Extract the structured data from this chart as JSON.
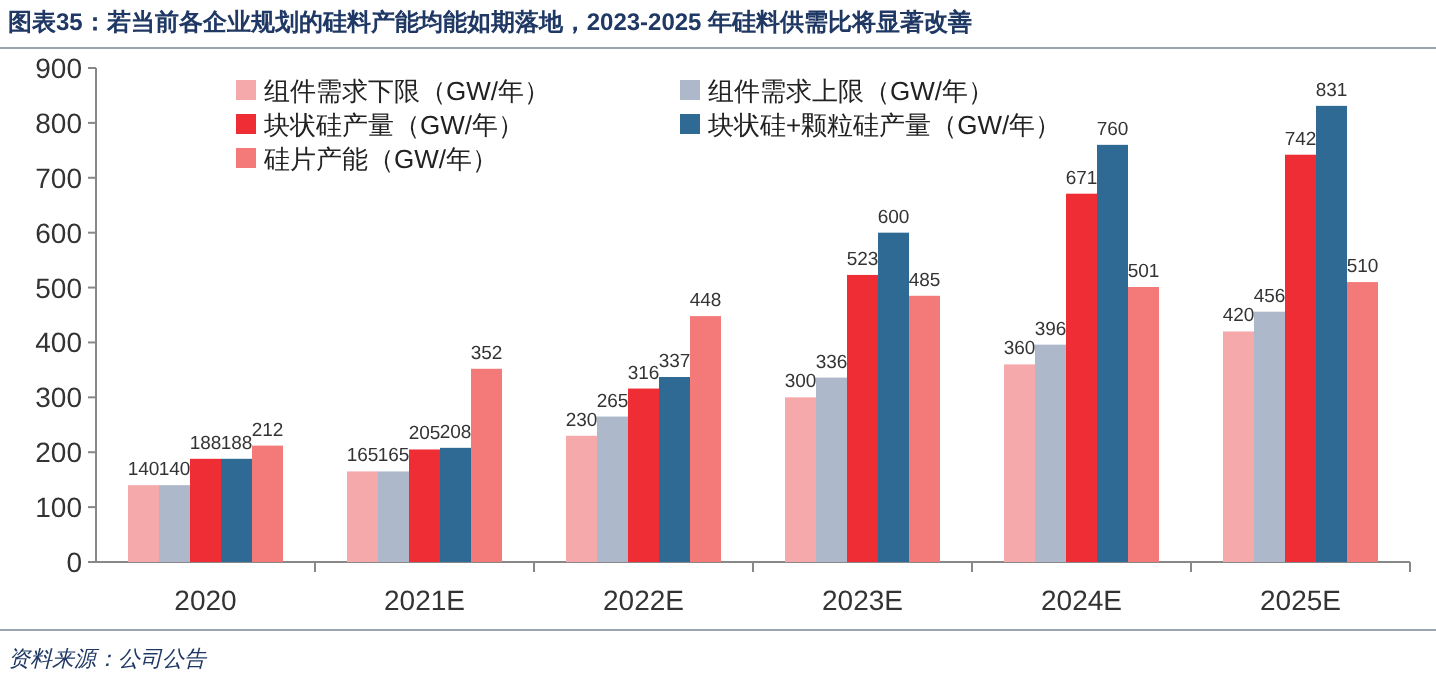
{
  "chart_data": {
    "type": "bar",
    "title": "图表35：若当前各企业规划的硅料产能均能如期落地，2023-2025 年硅料供需比将显著改善",
    "categories": [
      "2020",
      "2021E",
      "2022E",
      "2023E",
      "2024E",
      "2025E"
    ],
    "series": [
      {
        "name": "组件需求下限（GW/年）",
        "color": "#f6a9ab",
        "values": [
          140,
          165,
          230,
          300,
          360,
          420
        ]
      },
      {
        "name": "组件需求上限（GW/年）",
        "color": "#adb9ca",
        "values": [
          140,
          165,
          265,
          336,
          396,
          456
        ]
      },
      {
        "name": "块状硅产量（GW/年）",
        "color": "#ee2d34",
        "values": [
          188,
          205,
          316,
          523,
          671,
          742
        ]
      },
      {
        "name": "块状硅+颗粒硅产量（GW/年）",
        "color": "#2e6a94",
        "values": [
          188,
          208,
          337,
          600,
          760,
          831
        ]
      },
      {
        "name": "硅片产能（GW/年）",
        "color": "#f47a7a",
        "values": [
          212,
          352,
          448,
          485,
          501,
          510
        ]
      }
    ],
    "ylim": [
      0,
      900
    ],
    "yticks": [
      0,
      100,
      200,
      300,
      400,
      500,
      600,
      700,
      800,
      900
    ],
    "grid": false,
    "legend": "top left",
    "data_labels": true,
    "annotations": [
      "资料来源：公司公告"
    ]
  }
}
